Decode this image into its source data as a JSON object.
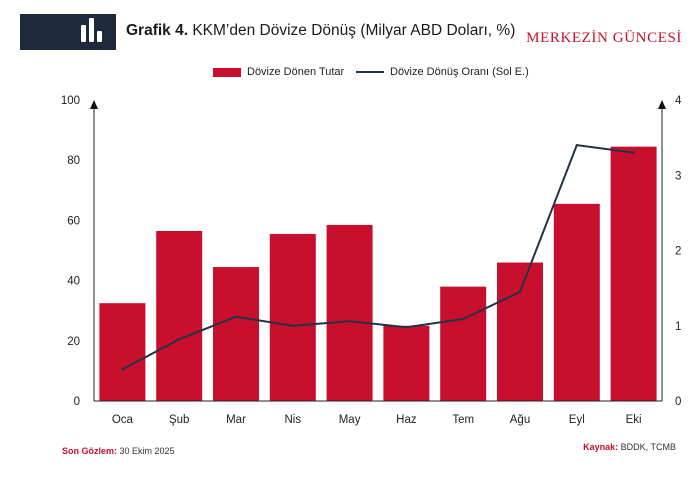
{
  "header": {
    "title_prefix": "Grafik 4.",
    "title_text": "KKM’den Dövize Dönüş (Milyar ABD Doları, %)",
    "brand": "MERKEZİN GÜNCESİ"
  },
  "colors": {
    "bar": "#c8102e",
    "line": "#253246",
    "logo_bg": "#1f2b3d"
  },
  "chart_data": {
    "type": "bar",
    "categories": [
      "Oca",
      "Şub",
      "Mar",
      "Nis",
      "May",
      "Haz",
      "Tem",
      "Ağu",
      "Eyl",
      "Eki"
    ],
    "series": [
      {
        "name": "Dövize Dönen Tutar",
        "type": "bar",
        "axis": "left",
        "values": [
          32.5,
          56.5,
          44.5,
          55.5,
          58.5,
          25,
          38,
          46,
          65.5,
          84.5
        ]
      },
      {
        "name": "Dövize Dönüş Oranı (Sol E.)",
        "type": "line",
        "axis": "right",
        "values": [
          0.42,
          0.82,
          1.12,
          1.0,
          1.06,
          0.98,
          1.09,
          1.45,
          3.4,
          3.3
        ]
      }
    ],
    "left_axis": {
      "min": 0,
      "max": 100,
      "ticks": [
        "0",
        "20",
        "40",
        "60",
        "80",
        "100"
      ]
    },
    "right_axis": {
      "min": 0,
      "max": 4,
      "ticks": [
        "0",
        "1",
        "2",
        "3",
        "4"
      ]
    },
    "legend_position": "top"
  },
  "footer": {
    "last_obs_label": "Son Gözlem:",
    "last_obs_value": "30 Ekim 2025",
    "source_label": "Kaynak:",
    "source_value": "BDDK, TCMB"
  }
}
